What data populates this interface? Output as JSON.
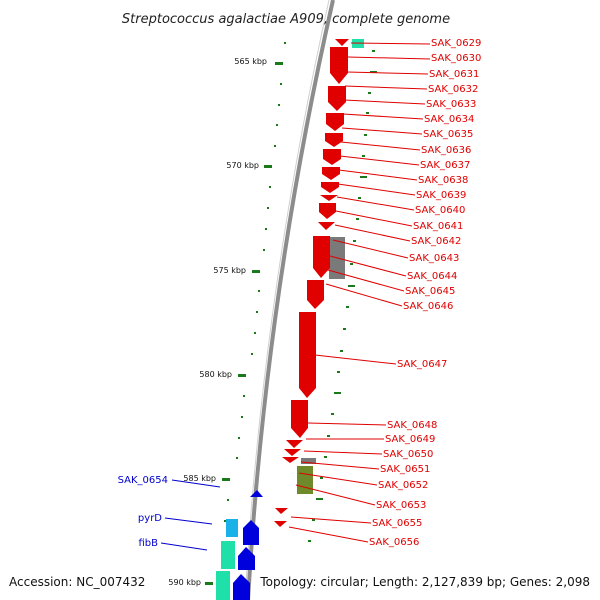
{
  "title": "Streptococcus agalactiae A909, complete genome",
  "footer": {
    "accession": "Accession: NC_007432",
    "topology": "Topology: circular; Length: 2,127,839 bp; Genes: 2,098"
  },
  "colors": {
    "forward_gene": "#e00000",
    "label_red": "#e00000",
    "label_blue": "#0000cc",
    "backbone": "#8c8c8c",
    "tick": "#1a7a1a",
    "gray_feature": "#7a7a7a",
    "olive_feature": "#6e8a2a",
    "teal_feature": "#1fe0a8",
    "cyan_feature": "#1ab0e8",
    "blue_feature": "#0000dd"
  },
  "scale_labels": [
    "565 kbp",
    "570 kbp",
    "575 kbp",
    "580 kbp",
    "585 kbp",
    "590 kbp"
  ],
  "gene_labels": [
    {
      "name": "SAK_0629",
      "color": "red"
    },
    {
      "name": "SAK_0630",
      "color": "red"
    },
    {
      "name": "SAK_0631",
      "color": "red"
    },
    {
      "name": "SAK_0632",
      "color": "red"
    },
    {
      "name": "SAK_0633",
      "color": "red"
    },
    {
      "name": "SAK_0634",
      "color": "red"
    },
    {
      "name": "SAK_0635",
      "color": "red"
    },
    {
      "name": "SAK_0636",
      "color": "red"
    },
    {
      "name": "SAK_0637",
      "color": "red"
    },
    {
      "name": "SAK_0638",
      "color": "red"
    },
    {
      "name": "SAK_0639",
      "color": "red"
    },
    {
      "name": "SAK_0640",
      "color": "red"
    },
    {
      "name": "SAK_0641",
      "color": "red"
    },
    {
      "name": "SAK_0642",
      "color": "red"
    },
    {
      "name": "SAK_0643",
      "color": "red"
    },
    {
      "name": "SAK_0644",
      "color": "red"
    },
    {
      "name": "SAK_0645",
      "color": "red"
    },
    {
      "name": "SAK_0646",
      "color": "red"
    },
    {
      "name": "SAK_0647",
      "color": "red"
    },
    {
      "name": "SAK_0648",
      "color": "red"
    },
    {
      "name": "SAK_0649",
      "color": "red"
    },
    {
      "name": "SAK_0650",
      "color": "red"
    },
    {
      "name": "SAK_0651",
      "color": "red"
    },
    {
      "name": "SAK_0652",
      "color": "red"
    },
    {
      "name": "SAK_0653",
      "color": "red"
    },
    {
      "name": "SAK_0655",
      "color": "red"
    },
    {
      "name": "SAK_0656",
      "color": "red"
    },
    {
      "name": "SAK_0654",
      "color": "blue"
    },
    {
      "name": "pyrD",
      "color": "blue"
    },
    {
      "name": "fibB",
      "color": "blue"
    }
  ]
}
